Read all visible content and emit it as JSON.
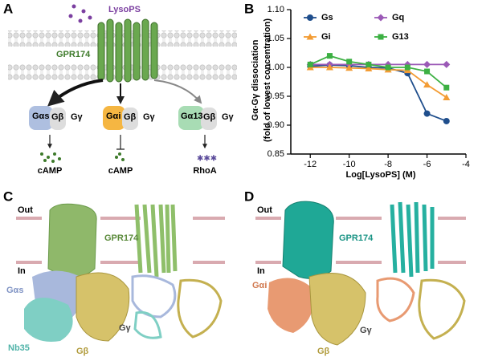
{
  "panel_a": {
    "label": "A",
    "ligand": "LysoPS",
    "receptor": "GPR174",
    "gs": [
      "Gαs",
      "Gβ",
      "Gγ"
    ],
    "gi": [
      "Gαi",
      "Gβ",
      "Gγ"
    ],
    "g13": [
      "Gα13",
      "Gβ",
      "Gγ"
    ],
    "outputs": [
      "cAMP",
      "cAMP",
      "RhoA"
    ]
  },
  "chart_data": {
    "type": "line",
    "label": "B",
    "xlabel": "Log[LysoPS] (M)",
    "ylabel": [
      "Gα-Gγ dissociation",
      "(fold of lowest concentration)"
    ],
    "x": [
      -12,
      -11,
      -10,
      -9,
      -8,
      -7,
      -6,
      -5
    ],
    "series": [
      {
        "name": "Gs",
        "color": "#1f4e8c",
        "marker": "circle",
        "values": [
          1.002,
          1.004,
          1.003,
          1.0,
          0.999,
          0.99,
          0.92,
          0.907
        ]
      },
      {
        "name": "Gq",
        "color": "#9b59b6",
        "marker": "diamond",
        "values": [
          1.005,
          1.005,
          1.005,
          1.005,
          1.005,
          1.005,
          1.005,
          1.005
        ]
      },
      {
        "name": "Gi",
        "color": "#f39c34",
        "marker": "triangle",
        "values": [
          1.0,
          1.0,
          0.999,
          0.998,
          0.996,
          0.995,
          0.97,
          0.948
        ]
      },
      {
        "name": "G13",
        "color": "#3cb043",
        "marker": "square",
        "values": [
          1.005,
          1.02,
          1.01,
          1.005,
          1.0,
          1.0,
          0.993,
          0.965
        ]
      }
    ],
    "xlim": [
      -13,
      -4
    ],
    "xticks": [
      -12,
      -10,
      -8,
      -6,
      -4
    ],
    "ylim": [
      0.85,
      1.1
    ],
    "yticks": [
      0.85,
      {
        "value": 0.9,
        "label": "0.90"
      },
      0.95,
      {
        "value": 1.0,
        "label": "1.00"
      },
      1.05,
      {
        "value": 1.1,
        "label": "1.10"
      }
    ]
  },
  "panel_c": {
    "label": "C",
    "out": "Out",
    "in": "In",
    "receptor": "GPR174",
    "galpha": "Gαs",
    "nb35": "Nb35",
    "gbeta": "Gβ",
    "ggamma": "Gγ"
  },
  "panel_d": {
    "label": "D",
    "out": "Out",
    "in": "In",
    "receptor": "GPR174",
    "galpha": "Gαi",
    "ggamma": "Gγ",
    "gbeta": "Gβ"
  }
}
